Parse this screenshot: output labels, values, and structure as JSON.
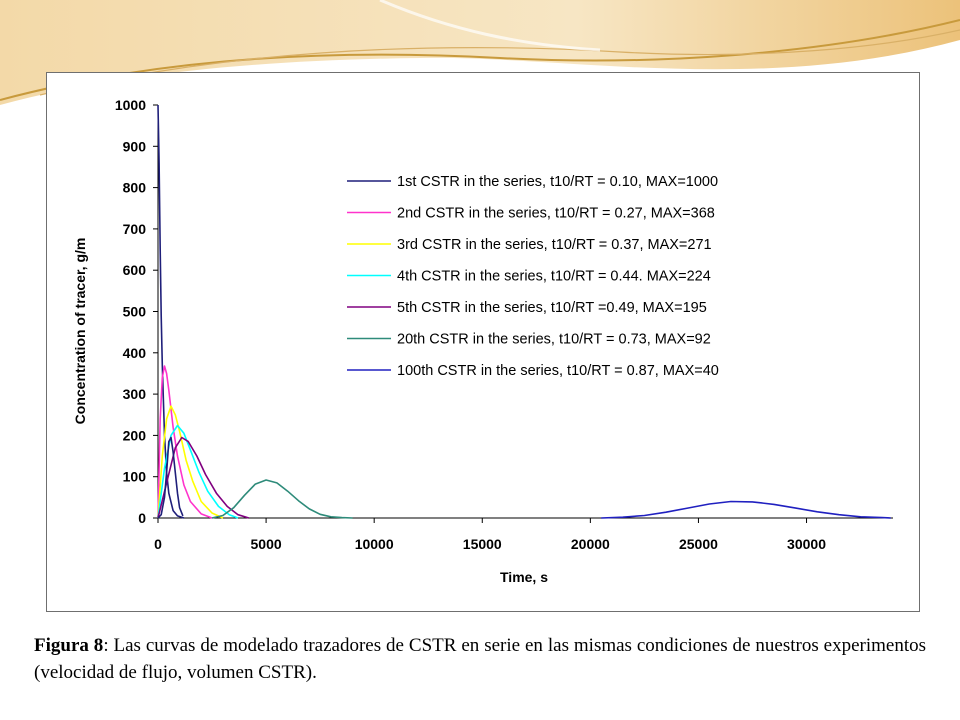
{
  "caption": {
    "label": "Figura 8",
    "text": ": Las curvas de modelado trazadores de CSTR en serie en las mismas condiciones de nuestros experimentos (velocidad de flujo, volumen CSTR)."
  },
  "chart_data": {
    "type": "line",
    "xlabel": "Time, s",
    "ylabel": "Concentration of tracer, g/m",
    "xlim": [
      0,
      34000
    ],
    "ylim": [
      0,
      1000
    ],
    "xticks": [
      0,
      5000,
      10000,
      15000,
      20000,
      25000,
      30000
    ],
    "yticks": [
      0,
      100,
      200,
      300,
      400,
      500,
      600,
      700,
      800,
      900,
      1000
    ],
    "grid": false,
    "legend_position": "top-right",
    "series": [
      {
        "name": "1st CSTR in the series, t10/RT = 0.10, MAX=1000",
        "color": "#1f1f7a",
        "x": [
          0,
          50,
          100,
          150,
          200,
          300,
          400,
          500,
          700,
          900,
          1200
        ],
        "y": [
          1000,
          860,
          650,
          490,
          370,
          200,
          110,
          60,
          18,
          5,
          0
        ]
      },
      {
        "name": "2nd CSTR in the series, t10/RT = 0.27, MAX=368",
        "color": "#ff33cc",
        "x": [
          0,
          100,
          200,
          300,
          400,
          500,
          700,
          900,
          1200,
          1500,
          2000,
          2500
        ],
        "y": [
          0,
          240,
          340,
          368,
          350,
          310,
          220,
          150,
          80,
          40,
          10,
          0
        ]
      },
      {
        "name": "3rd  CSTR in the series, t10/RT = 0.37, MAX=271",
        "color": "#ffff00",
        "x": [
          0,
          200,
          400,
          600,
          800,
          1000,
          1300,
          1600,
          2000,
          2500,
          3000
        ],
        "y": [
          0,
          150,
          240,
          271,
          250,
          210,
          140,
          90,
          40,
          12,
          0
        ]
      },
      {
        "name": "4th CSTR in the series, t10/RT = 0.44. MAX=224",
        "color": "#00ffff",
        "x": [
          0,
          300,
          600,
          900,
          1200,
          1500,
          1900,
          2300,
          2800,
          3300,
          3700
        ],
        "y": [
          0,
          120,
          200,
          224,
          205,
          165,
          110,
          65,
          28,
          8,
          0
        ]
      },
      {
        "name": "5th CSTR in the series, t10/RT =0.49, MAX=195",
        "color": "#800080",
        "x": [
          0,
          400,
          800,
          1100,
          1400,
          1800,
          2200,
          2700,
          3200,
          3700,
          4200
        ],
        "y": [
          0,
          85,
          170,
          195,
          185,
          150,
          105,
          60,
          28,
          8,
          0
        ]
      },
      {
        "name": "20th CSTR in the series, t10/RT = 0.73, MAX=92",
        "color": "#2e8b7a",
        "x": [
          2500,
          3000,
          3500,
          4000,
          4500,
          5000,
          5500,
          6000,
          6500,
          7000,
          7500,
          8000,
          8500,
          9000
        ],
        "y": [
          0,
          6,
          25,
          55,
          82,
          92,
          85,
          65,
          42,
          22,
          9,
          3,
          1,
          0
        ]
      },
      {
        "name": "100th CSTR in the series, t10/RT = 0.87, MAX=40",
        "color": "#2020c0",
        "x": [
          20500,
          21500,
          22500,
          23500,
          24500,
          25500,
          26500,
          27500,
          28500,
          29500,
          30500,
          31500,
          32500,
          33500,
          33900
        ],
        "y": [
          0,
          2,
          6,
          14,
          24,
          34,
          40,
          39,
          33,
          24,
          15,
          8,
          3,
          1,
          0
        ]
      },
      {
        "name": "",
        "color": "#1f1f7a",
        "x": [
          0,
          150,
          300,
          400,
          500,
          600,
          700,
          800,
          900,
          1000,
          1150
        ],
        "y": [
          0,
          8,
          50,
          110,
          185,
          195,
          160,
          110,
          60,
          25,
          5
        ]
      }
    ]
  }
}
